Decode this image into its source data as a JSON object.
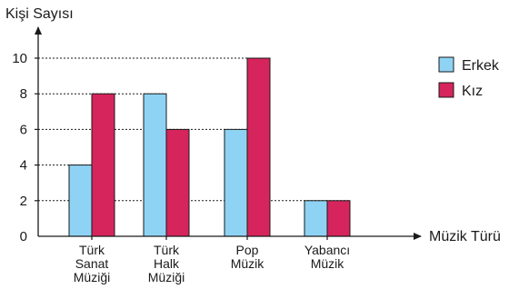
{
  "chart_data": {
    "type": "bar",
    "ylabel": "Kişi Sayısı",
    "xlabel": "Müzik Türü",
    "categories": [
      [
        "Türk",
        "Sanat",
        "Müziği"
      ],
      [
        "Türk",
        "Halk",
        "Müziği"
      ],
      [
        "Pop",
        "Müzik"
      ],
      [
        "Yabancı",
        "Müzik"
      ]
    ],
    "series": [
      {
        "name": "Erkek",
        "values": [
          4,
          8,
          6,
          2
        ],
        "color": "#8fd3f4"
      },
      {
        "name": "Kız",
        "values": [
          8,
          6,
          10,
          2
        ],
        "color": "#d6245c"
      }
    ],
    "ylim": [
      0,
      11
    ],
    "yticks": [
      0,
      2,
      4,
      6,
      8,
      10
    ],
    "grid": "dashed lines at bar tops",
    "legend_position": "top-right"
  }
}
